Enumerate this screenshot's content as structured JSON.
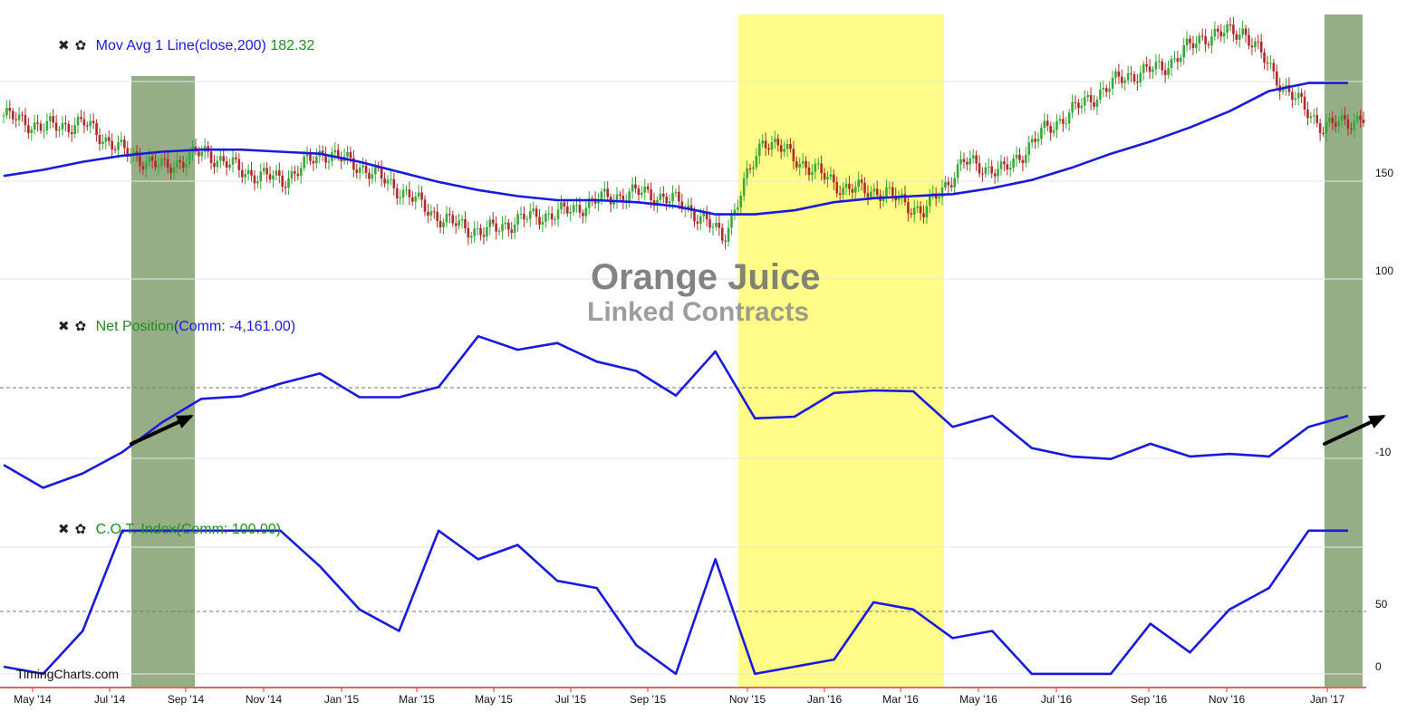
{
  "watermark": {
    "title": "Orange Juice",
    "subtitle": "Linked Contracts"
  },
  "credit": "TimingCharts.com",
  "controls": {
    "close_glyph": "✖",
    "settings_glyph": "✿"
  },
  "colors": {
    "series_line": "#1a1adf",
    "up_candle": "#3aa83a",
    "down_candle": "#b02a2a",
    "highlight_green": "#96ae86",
    "highlight_yellow": "#fffc87",
    "axis_red": "#e03030"
  },
  "panels": [
    {
      "name": "price",
      "title": "Mov Avg 1 Line(close,200)",
      "value": "182.32"
    },
    {
      "name": "net",
      "title": "Net Position",
      "value": "(Comm: -4,161.00)"
    },
    {
      "name": "cot",
      "title": "C.O.T. Index",
      "value": "(Comm: 100.00)"
    }
  ],
  "y_labels": {
    "price": [
      "150",
      "100"
    ],
    "net": [
      "-10"
    ],
    "cot": [
      "50",
      "0"
    ]
  },
  "x_labels": [
    "May '14",
    "Jul '14",
    "Sep '14",
    "Nov '14",
    "Jan '15",
    "Mar '15",
    "May '15",
    "Jul '15",
    "Sep '15",
    "Nov '15",
    "Jan '16",
    "Mar '16",
    "May '16",
    "Jul '16",
    "Sep '16",
    "Nov '16",
    "Jan '17"
  ],
  "chart_data": [
    {
      "type": "line",
      "title": "Mov Avg 1 Line(close,200) 182.32",
      "xlabel": "",
      "ylabel": "",
      "x": [
        "Apr '14",
        "May '14",
        "Jun '14",
        "Jul '14",
        "Aug '14",
        "Sep '14",
        "Oct '14",
        "Nov '14",
        "Dec '14",
        "Jan '15",
        "Feb '15",
        "Mar '15",
        "Apr '15",
        "May '15",
        "Jun '15",
        "Jul '15",
        "Aug '15",
        "Sep '15",
        "Oct '15",
        "Nov '15",
        "Dec '15",
        "Jan '16",
        "Feb '16",
        "Mar '16",
        "Apr '16",
        "May '16",
        "Jun '16",
        "Jul '16",
        "Aug '16",
        "Sep '16",
        "Oct '16",
        "Nov '16",
        "Dec '16",
        "Jan '17",
        "Feb '17"
      ],
      "ylim": [
        85,
        215
      ],
      "series": [
        {
          "name": "close",
          "values": [
            166,
            160,
            162,
            148,
            140,
            148,
            138,
            134,
            148,
            140,
            128,
            114,
            108,
            115,
            118,
            125,
            128,
            122,
            106,
            155,
            142,
            130,
            128,
            118,
            143,
            138,
            158,
            172,
            185,
            190,
            205,
            208,
            180,
            160,
            165
          ]
        },
        {
          "name": "Mov Avg 1 Line(close,200)",
          "values": [
            136,
            139,
            143,
            146,
            148,
            149,
            149,
            148,
            147,
            143,
            138,
            133,
            129,
            126,
            124,
            124,
            123,
            121,
            117,
            117,
            119,
            123,
            125,
            126,
            127,
            130,
            134,
            140,
            147,
            153,
            160,
            168,
            178,
            182,
            182
          ]
        }
      ]
    },
    {
      "type": "line",
      "title": "Net Position(Comm: -4,161.00)",
      "xlabel": "",
      "ylabel": "",
      "x": [
        "Apr '14",
        "May '14",
        "Jun '14",
        "Jul '14",
        "Aug '14",
        "Sep '14",
        "Oct '14",
        "Nov '14",
        "Dec '14",
        "Jan '15",
        "Feb '15",
        "Mar '15",
        "Apr '15",
        "May '15",
        "Jun '15",
        "Jul '15",
        "Aug '15",
        "Sep '15",
        "Oct '15",
        "Nov '15",
        "Dec '15",
        "Jan '16",
        "Feb '16",
        "Mar '16",
        "Apr '16",
        "May '16",
        "Jun '16",
        "Jul '16",
        "Aug '16",
        "Sep '16",
        "Oct '16",
        "Nov '16",
        "Dec '16",
        "Jan '17",
        "Feb '17"
      ],
      "ylim": [
        -14,
        9
      ],
      "series": [
        {
          "name": "Net Position (Comm)",
          "values": [
            -9,
            -11.7,
            -10,
            -7.5,
            -4,
            -1.2,
            -0.9,
            0.6,
            1.8,
            -1,
            -1,
            0.2,
            6.2,
            4.6,
            5.4,
            3.2,
            2.1,
            -0.8,
            4.4,
            -3.5,
            -3.3,
            -0.5,
            -0.2,
            -0.3,
            -4.5,
            -3.2,
            -7,
            -8,
            -8.3,
            -6.5,
            -8,
            -7.7,
            -8,
            -4.5,
            -3.2
          ]
        }
      ]
    },
    {
      "type": "line",
      "title": "C.O.T. Index(Comm: 100.00)",
      "xlabel": "",
      "ylabel": "",
      "x": [
        "Apr '14",
        "May '14",
        "Jun '14",
        "Jul '14",
        "Aug '14",
        "Sep '14",
        "Oct '14",
        "Nov '14",
        "Dec '14",
        "Jan '15",
        "Feb '15",
        "Mar '15",
        "Apr '15",
        "May '15",
        "Jun '15",
        "Jul '15",
        "Aug '15",
        "Sep '15",
        "Oct '15",
        "Nov '15",
        "Dec '15",
        "Jan '16",
        "Feb '16",
        "Mar '16",
        "Apr '16",
        "May '16",
        "Jun '16",
        "Jul '16",
        "Aug '16",
        "Sep '16",
        "Oct '16",
        "Nov '16",
        "Dec '16",
        "Jan '17",
        "Feb '17"
      ],
      "ylim": [
        -7,
        110
      ],
      "series": [
        {
          "name": "C.O.T. Index (Comm)",
          "values": [
            5,
            0,
            30,
            100,
            100,
            100,
            100,
            100,
            75,
            45,
            30,
            100,
            80,
            90,
            65,
            60,
            20,
            0,
            80,
            0,
            5,
            10,
            50,
            45,
            25,
            30,
            0,
            0,
            0,
            35,
            15,
            45,
            60,
            100,
            100
          ]
        }
      ]
    }
  ]
}
